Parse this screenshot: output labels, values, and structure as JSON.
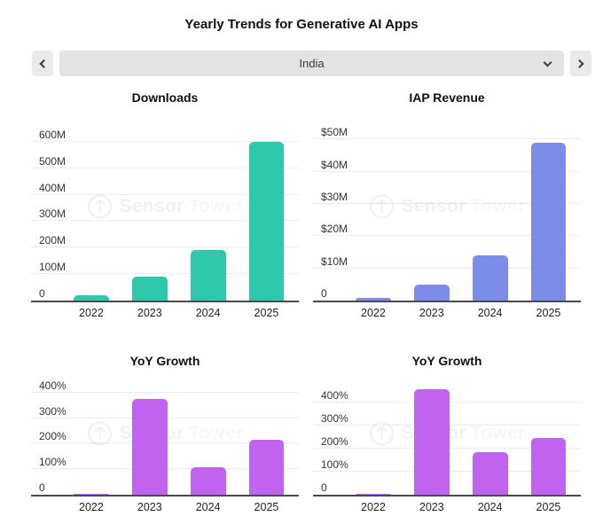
{
  "page": {
    "title": "Yearly Trends for Generative AI Apps"
  },
  "selector": {
    "value": "India",
    "prev_icon": "chevron-left",
    "next_icon": "chevron-right",
    "dropdown_icon": "chevron-down"
  },
  "watermark": {
    "brand_first": "Sensor",
    "brand_second": "Tower"
  },
  "colors": {
    "downloads_bar": "#2ec8ac",
    "revenue_bar": "#7b8de8",
    "growth_bar": "#c162f0",
    "axis_line": "#4a4a4a",
    "gridline": "#ececec"
  },
  "chart_data": [
    {
      "type": "bar",
      "title": "Downloads",
      "categories": [
        "2022",
        "2023",
        "2024",
        "2025"
      ],
      "values": [
        20,
        92,
        190,
        600
      ],
      "value_unit": "M",
      "color": "#2ec8ac",
      "ylim": [
        0,
        670
      ],
      "grid": true,
      "yticks": [
        {
          "value": 0,
          "label": "0"
        },
        {
          "value": 100,
          "label": "100M"
        },
        {
          "value": 200,
          "label": "200M"
        },
        {
          "value": 300,
          "label": "300M"
        },
        {
          "value": 400,
          "label": "400M"
        },
        {
          "value": 500,
          "label": "500M"
        },
        {
          "value": 600,
          "label": "600M"
        }
      ]
    },
    {
      "type": "bar",
      "title": "IAP Revenue",
      "categories": [
        "2022",
        "2023",
        "2024",
        "2025"
      ],
      "values": [
        0.9,
        5,
        14,
        49
      ],
      "value_unit": "$M",
      "color": "#7b8de8",
      "ylim": [
        0,
        55
      ],
      "grid": true,
      "yticks": [
        {
          "value": 0,
          "label": "0"
        },
        {
          "value": 10,
          "label": "$10M"
        },
        {
          "value": 20,
          "label": "$20M"
        },
        {
          "value": 30,
          "label": "$30M"
        },
        {
          "value": 40,
          "label": "$40M"
        },
        {
          "value": 50,
          "label": "$50M"
        }
      ]
    },
    {
      "type": "bar",
      "title": "YoY Growth",
      "categories": [
        "2022",
        "2023",
        "2024",
        "2025"
      ],
      "values": [
        2,
        375,
        108,
        215
      ],
      "value_unit": "%",
      "color": "#c162f0",
      "ylim": [
        0,
        455
      ],
      "grid": true,
      "yticks": [
        {
          "value": 0,
          "label": "0"
        },
        {
          "value": 100,
          "label": "100%"
        },
        {
          "value": 200,
          "label": "200%"
        },
        {
          "value": 300,
          "label": "300%"
        },
        {
          "value": 400,
          "label": "400%"
        }
      ]
    },
    {
      "type": "bar",
      "title": "YoY Growth",
      "categories": [
        "2022",
        "2023",
        "2024",
        "2025"
      ],
      "values": [
        2,
        460,
        187,
        245
      ],
      "value_unit": "%",
      "color": "#c162f0",
      "ylim": [
        0,
        505
      ],
      "grid": true,
      "yticks": [
        {
          "value": 0,
          "label": "0"
        },
        {
          "value": 100,
          "label": "100%"
        },
        {
          "value": 200,
          "label": "200%"
        },
        {
          "value": 300,
          "label": "300%"
        },
        {
          "value": 400,
          "label": "400%"
        }
      ]
    }
  ]
}
